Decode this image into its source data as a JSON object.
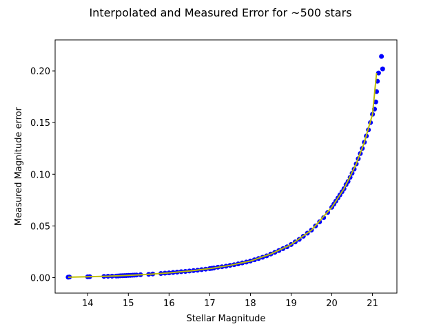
{
  "chart_data": {
    "type": "scatter",
    "title": "Interpolated and Measured Error for ~500 stars",
    "xlabel": "Stellar Magnitude",
    "ylabel": "Measured Magnitude error",
    "xlim": [
      13.2,
      21.6
    ],
    "ylim": [
      -0.015,
      0.23
    ],
    "xticks": [
      14,
      15,
      16,
      17,
      18,
      19,
      20,
      21
    ],
    "yticks": [
      0.0,
      0.05,
      0.1,
      0.15,
      0.2
    ],
    "ytick_labels": [
      "0.00",
      "0.05",
      "0.10",
      "0.15",
      "0.20"
    ],
    "grid": false,
    "legend": "none",
    "series": [
      {
        "kind": "scatter",
        "color": "#0000ff",
        "x": [
          13.52,
          13.55,
          14.0,
          14.05,
          14.4,
          14.5,
          14.6,
          14.7,
          14.75,
          14.8,
          14.85,
          14.9,
          14.95,
          15.0,
          15.05,
          15.1,
          15.15,
          15.2,
          15.3,
          15.5,
          15.6,
          15.8,
          15.9,
          16.0,
          16.1,
          16.2,
          16.3,
          16.4,
          16.5,
          16.6,
          16.7,
          16.8,
          16.9,
          17.0,
          17.05,
          17.1,
          17.2,
          17.3,
          17.4,
          17.5,
          17.6,
          17.7,
          17.8,
          17.9,
          18.0,
          18.1,
          18.2,
          18.3,
          18.4,
          18.5,
          18.6,
          18.7,
          18.8,
          18.9,
          19.0,
          19.1,
          19.2,
          19.3,
          19.4,
          19.5,
          19.6,
          19.7,
          19.8,
          19.9,
          20.0,
          20.05,
          20.1,
          20.15,
          20.2,
          20.25,
          20.3,
          20.35,
          20.4,
          20.45,
          20.5,
          20.55,
          20.6,
          20.65,
          20.7,
          20.75,
          20.8,
          20.85,
          20.9,
          20.95,
          21.0,
          21.05,
          21.08,
          21.1,
          21.12,
          21.15,
          21.22,
          21.25
        ],
        "y": [
          0.0004,
          0.0006,
          0.0008,
          0.0009,
          0.0012,
          0.0013,
          0.0014,
          0.0015,
          0.0016,
          0.0017,
          0.0018,
          0.0019,
          0.002,
          0.0021,
          0.0022,
          0.0023,
          0.0024,
          0.0025,
          0.0028,
          0.0032,
          0.0035,
          0.004,
          0.0043,
          0.0046,
          0.005,
          0.0053,
          0.0057,
          0.006,
          0.0064,
          0.0068,
          0.0072,
          0.0077,
          0.0082,
          0.0087,
          0.009,
          0.0093,
          0.01,
          0.0105,
          0.011,
          0.0118,
          0.0125,
          0.0133,
          0.0142,
          0.015,
          0.016,
          0.0172,
          0.0184,
          0.0197,
          0.021,
          0.0228,
          0.0245,
          0.0262,
          0.028,
          0.0298,
          0.032,
          0.0345,
          0.037,
          0.04,
          0.043,
          0.046,
          0.05,
          0.054,
          0.058,
          0.063,
          0.068,
          0.071,
          0.074,
          0.077,
          0.08,
          0.083,
          0.086,
          0.09,
          0.093,
          0.097,
          0.101,
          0.105,
          0.11,
          0.115,
          0.12,
          0.125,
          0.131,
          0.137,
          0.143,
          0.15,
          0.158,
          0.163,
          0.17,
          0.18,
          0.19,
          0.198,
          0.214,
          0.202
        ]
      },
      {
        "kind": "line",
        "color": "#bfbf00",
        "x": [
          13.52,
          14.0,
          14.5,
          15.0,
          15.5,
          16.0,
          16.5,
          17.0,
          17.5,
          18.0,
          18.5,
          19.0,
          19.5,
          20.0,
          20.3,
          20.6,
          20.8,
          21.0,
          21.1
        ],
        "y": [
          0.0004,
          0.0008,
          0.0013,
          0.0021,
          0.0032,
          0.0046,
          0.0064,
          0.0087,
          0.0118,
          0.016,
          0.0228,
          0.032,
          0.046,
          0.068,
          0.086,
          0.11,
          0.131,
          0.158,
          0.198
        ]
      }
    ]
  }
}
